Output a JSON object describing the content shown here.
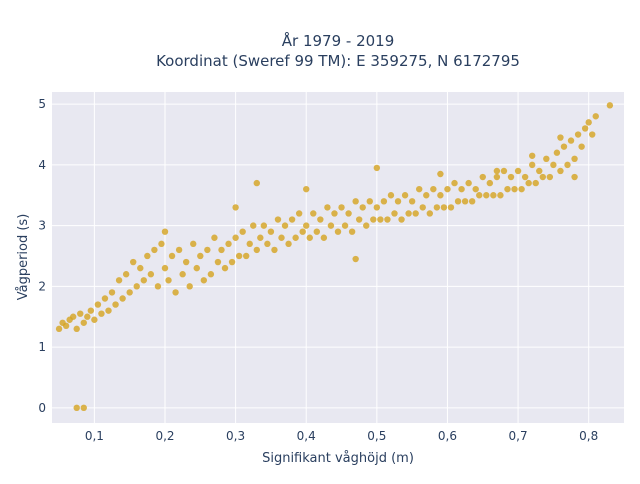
{
  "chart_data": {
    "type": "scatter",
    "title_line1": "År 1979 - 2019",
    "title_line2": "Koordinat (Sweref 99 TM): E 359275, N 6172795",
    "xlabel": "Signifikant våghöjd (m)",
    "ylabel": "Vågperiod (s)",
    "xlim": [
      0.04,
      0.85
    ],
    "ylim": [
      -0.25,
      5.2
    ],
    "x_ticks": [
      0.1,
      0.2,
      0.3,
      0.4,
      0.5,
      0.6,
      0.7,
      0.8
    ],
    "x_tick_labels": [
      "0,1",
      "0,2",
      "0,3",
      "0,4",
      "0,5",
      "0,6",
      "0,7",
      "0,8"
    ],
    "y_ticks": [
      0,
      1,
      2,
      3,
      4,
      5
    ],
    "y_tick_labels": [
      "0",
      "1",
      "2",
      "3",
      "4",
      "5"
    ],
    "grid": true,
    "colors": {
      "marker": "#d4a21f",
      "plot_bg": "#e8e8f1",
      "grid": "#ffffff",
      "text": "#2a3f5f"
    },
    "series": [
      {
        "points": [
          [
            0.075,
            0.0
          ],
          [
            0.085,
            0.0
          ],
          [
            0.05,
            1.3
          ],
          [
            0.055,
            1.4
          ],
          [
            0.06,
            1.35
          ],
          [
            0.065,
            1.45
          ],
          [
            0.07,
            1.5
          ],
          [
            0.075,
            1.3
          ],
          [
            0.08,
            1.55
          ],
          [
            0.085,
            1.4
          ],
          [
            0.09,
            1.5
          ],
          [
            0.095,
            1.6
          ],
          [
            0.1,
            1.45
          ],
          [
            0.105,
            1.7
          ],
          [
            0.11,
            1.55
          ],
          [
            0.115,
            1.8
          ],
          [
            0.12,
            1.6
          ],
          [
            0.125,
            1.9
          ],
          [
            0.13,
            1.7
          ],
          [
            0.135,
            2.1
          ],
          [
            0.14,
            1.8
          ],
          [
            0.145,
            2.2
          ],
          [
            0.15,
            1.9
          ],
          [
            0.155,
            2.4
          ],
          [
            0.16,
            2.0
          ],
          [
            0.165,
            2.3
          ],
          [
            0.17,
            2.1
          ],
          [
            0.175,
            2.5
          ],
          [
            0.18,
            2.2
          ],
          [
            0.185,
            2.6
          ],
          [
            0.19,
            2.0
          ],
          [
            0.195,
            2.7
          ],
          [
            0.2,
            2.3
          ],
          [
            0.205,
            2.1
          ],
          [
            0.21,
            2.5
          ],
          [
            0.215,
            1.9
          ],
          [
            0.22,
            2.6
          ],
          [
            0.225,
            2.2
          ],
          [
            0.23,
            2.4
          ],
          [
            0.235,
            2.0
          ],
          [
            0.24,
            2.7
          ],
          [
            0.245,
            2.3
          ],
          [
            0.25,
            2.5
          ],
          [
            0.255,
            2.1
          ],
          [
            0.26,
            2.6
          ],
          [
            0.265,
            2.2
          ],
          [
            0.27,
            2.8
          ],
          [
            0.275,
            2.4
          ],
          [
            0.28,
            2.6
          ],
          [
            0.285,
            2.3
          ],
          [
            0.29,
            2.7
          ],
          [
            0.295,
            2.4
          ],
          [
            0.3,
            2.8
          ],
          [
            0.305,
            2.5
          ],
          [
            0.31,
            2.9
          ],
          [
            0.315,
            2.5
          ],
          [
            0.32,
            2.7
          ],
          [
            0.325,
            3.0
          ],
          [
            0.33,
            2.6
          ],
          [
            0.335,
            2.8
          ],
          [
            0.34,
            3.0
          ],
          [
            0.345,
            2.7
          ],
          [
            0.35,
            2.9
          ],
          [
            0.355,
            2.6
          ],
          [
            0.36,
            3.1
          ],
          [
            0.365,
            2.8
          ],
          [
            0.37,
            3.0
          ],
          [
            0.375,
            2.7
          ],
          [
            0.38,
            3.1
          ],
          [
            0.385,
            2.8
          ],
          [
            0.39,
            3.2
          ],
          [
            0.395,
            2.9
          ],
          [
            0.4,
            3.0
          ],
          [
            0.405,
            2.8
          ],
          [
            0.41,
            3.2
          ],
          [
            0.415,
            2.9
          ],
          [
            0.42,
            3.1
          ],
          [
            0.425,
            2.8
          ],
          [
            0.43,
            3.3
          ],
          [
            0.435,
            3.0
          ],
          [
            0.44,
            3.2
          ],
          [
            0.445,
            2.9
          ],
          [
            0.45,
            3.3
          ],
          [
            0.455,
            3.0
          ],
          [
            0.46,
            3.2
          ],
          [
            0.465,
            2.9
          ],
          [
            0.47,
            3.4
          ],
          [
            0.475,
            3.1
          ],
          [
            0.48,
            3.3
          ],
          [
            0.485,
            3.0
          ],
          [
            0.49,
            3.4
          ],
          [
            0.495,
            3.1
          ],
          [
            0.5,
            3.3
          ],
          [
            0.505,
            3.1
          ],
          [
            0.51,
            3.4
          ],
          [
            0.515,
            3.1
          ],
          [
            0.52,
            3.5
          ],
          [
            0.525,
            3.2
          ],
          [
            0.53,
            3.4
          ],
          [
            0.535,
            3.1
          ],
          [
            0.54,
            3.5
          ],
          [
            0.545,
            3.2
          ],
          [
            0.55,
            3.4
          ],
          [
            0.555,
            3.2
          ],
          [
            0.56,
            3.6
          ],
          [
            0.565,
            3.3
          ],
          [
            0.57,
            3.5
          ],
          [
            0.575,
            3.2
          ],
          [
            0.58,
            3.6
          ],
          [
            0.585,
            3.3
          ],
          [
            0.59,
            3.5
          ],
          [
            0.595,
            3.3
          ],
          [
            0.6,
            3.6
          ],
          [
            0.605,
            3.3
          ],
          [
            0.61,
            3.7
          ],
          [
            0.615,
            3.4
          ],
          [
            0.62,
            3.6
          ],
          [
            0.625,
            3.4
          ],
          [
            0.63,
            3.7
          ],
          [
            0.635,
            3.4
          ],
          [
            0.64,
            3.6
          ],
          [
            0.645,
            3.5
          ],
          [
            0.65,
            3.8
          ],
          [
            0.655,
            3.5
          ],
          [
            0.66,
            3.7
          ],
          [
            0.665,
            3.5
          ],
          [
            0.67,
            3.8
          ],
          [
            0.675,
            3.5
          ],
          [
            0.68,
            3.9
          ],
          [
            0.685,
            3.6
          ],
          [
            0.69,
            3.8
          ],
          [
            0.695,
            3.6
          ],
          [
            0.7,
            3.9
          ],
          [
            0.705,
            3.6
          ],
          [
            0.71,
            3.8
          ],
          [
            0.715,
            3.7
          ],
          [
            0.72,
            4.0
          ],
          [
            0.725,
            3.7
          ],
          [
            0.73,
            3.9
          ],
          [
            0.735,
            3.8
          ],
          [
            0.74,
            4.1
          ],
          [
            0.745,
            3.8
          ],
          [
            0.75,
            4.0
          ],
          [
            0.755,
            4.2
          ],
          [
            0.76,
            3.9
          ],
          [
            0.765,
            4.3
          ],
          [
            0.77,
            4.0
          ],
          [
            0.775,
            4.4
          ],
          [
            0.78,
            4.1
          ],
          [
            0.785,
            4.5
          ],
          [
            0.79,
            4.3
          ],
          [
            0.795,
            4.6
          ],
          [
            0.8,
            4.7
          ],
          [
            0.805,
            4.5
          ],
          [
            0.81,
            4.8
          ],
          [
            0.83,
            4.98
          ],
          [
            0.33,
            3.7
          ],
          [
            0.4,
            3.6
          ],
          [
            0.5,
            3.95
          ],
          [
            0.59,
            3.85
          ],
          [
            0.67,
            3.9
          ],
          [
            0.72,
            4.15
          ],
          [
            0.47,
            2.45
          ],
          [
            0.76,
            4.45
          ],
          [
            0.78,
            3.8
          ],
          [
            0.3,
            3.3
          ],
          [
            0.2,
            2.9
          ]
        ]
      }
    ]
  }
}
